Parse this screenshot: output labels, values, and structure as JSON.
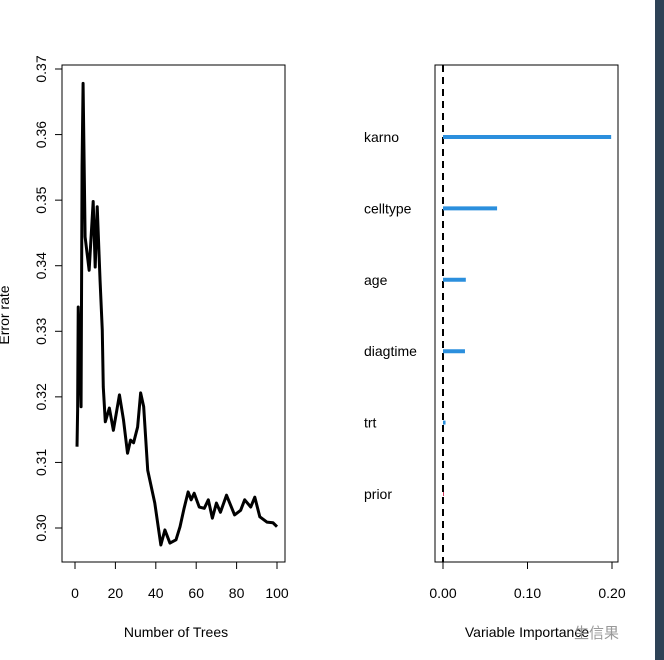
{
  "chart_data": [
    {
      "type": "line",
      "title": "",
      "xlabel": "Number of Trees",
      "ylabel": "Error rate",
      "xlim": [
        0,
        100
      ],
      "ylim": [
        0.2955,
        0.3705
      ],
      "xticks": [
        0,
        20,
        40,
        60,
        80,
        100
      ],
      "yticks": [
        0.3,
        0.31,
        0.32,
        0.33,
        0.34,
        0.35,
        0.36,
        0.37
      ],
      "ytick_labels": [
        "0.30",
        "0.31",
        "0.32",
        "0.33",
        "0.34",
        "0.35",
        "0.36",
        "0.37"
      ],
      "x": [
        1,
        1.3,
        1.6,
        3,
        3.5,
        4,
        5,
        7,
        9,
        10,
        11,
        12.4,
        13.5,
        14,
        15,
        17,
        19,
        22,
        24,
        26,
        27.5,
        29,
        31,
        32.5,
        34,
        36,
        39.5,
        42.5,
        44.5,
        47,
        50,
        52,
        54,
        56,
        57.5,
        59,
        61.5,
        64,
        66,
        68,
        70,
        72,
        75,
        79,
        82,
        84,
        87,
        89,
        91.5,
        95,
        98,
        100
      ],
      "y": [
        0.3124,
        0.318,
        0.3337,
        0.3185,
        0.3551,
        0.3678,
        0.3444,
        0.3393,
        0.3498,
        0.3398,
        0.349,
        0.3378,
        0.3302,
        0.3215,
        0.3162,
        0.3183,
        0.3149,
        0.3203,
        0.3165,
        0.3114,
        0.3134,
        0.313,
        0.3154,
        0.3206,
        0.3185,
        0.3088,
        0.3038,
        0.2974,
        0.2997,
        0.2977,
        0.2982,
        0.3002,
        0.303,
        0.3055,
        0.3043,
        0.3053,
        0.3032,
        0.303,
        0.3043,
        0.3015,
        0.3038,
        0.3024,
        0.305,
        0.302,
        0.3027,
        0.3043,
        0.3032,
        0.3047,
        0.3017,
        0.3009,
        0.3008,
        0.3002
      ]
    },
    {
      "type": "bar",
      "orientation": "horizontal",
      "title": "",
      "xlabel": "Variable Importance",
      "ylabel": "",
      "xlim": [
        -0.002,
        0.21
      ],
      "xticks": [
        0,
        0.1,
        0.2
      ],
      "xtick_labels": [
        "0.00",
        "0.10",
        "0.20"
      ],
      "categories": [
        "karno",
        "celltype",
        "age",
        "diagtime",
        "trt",
        "prior"
      ],
      "values": [
        0.199,
        0.064,
        0.027,
        0.026,
        0.003,
        0.0003
      ],
      "reference_line": 0,
      "bar_color": "#2b8fdd",
      "negative_color": "#d04060"
    }
  ],
  "watermark": "生信果"
}
